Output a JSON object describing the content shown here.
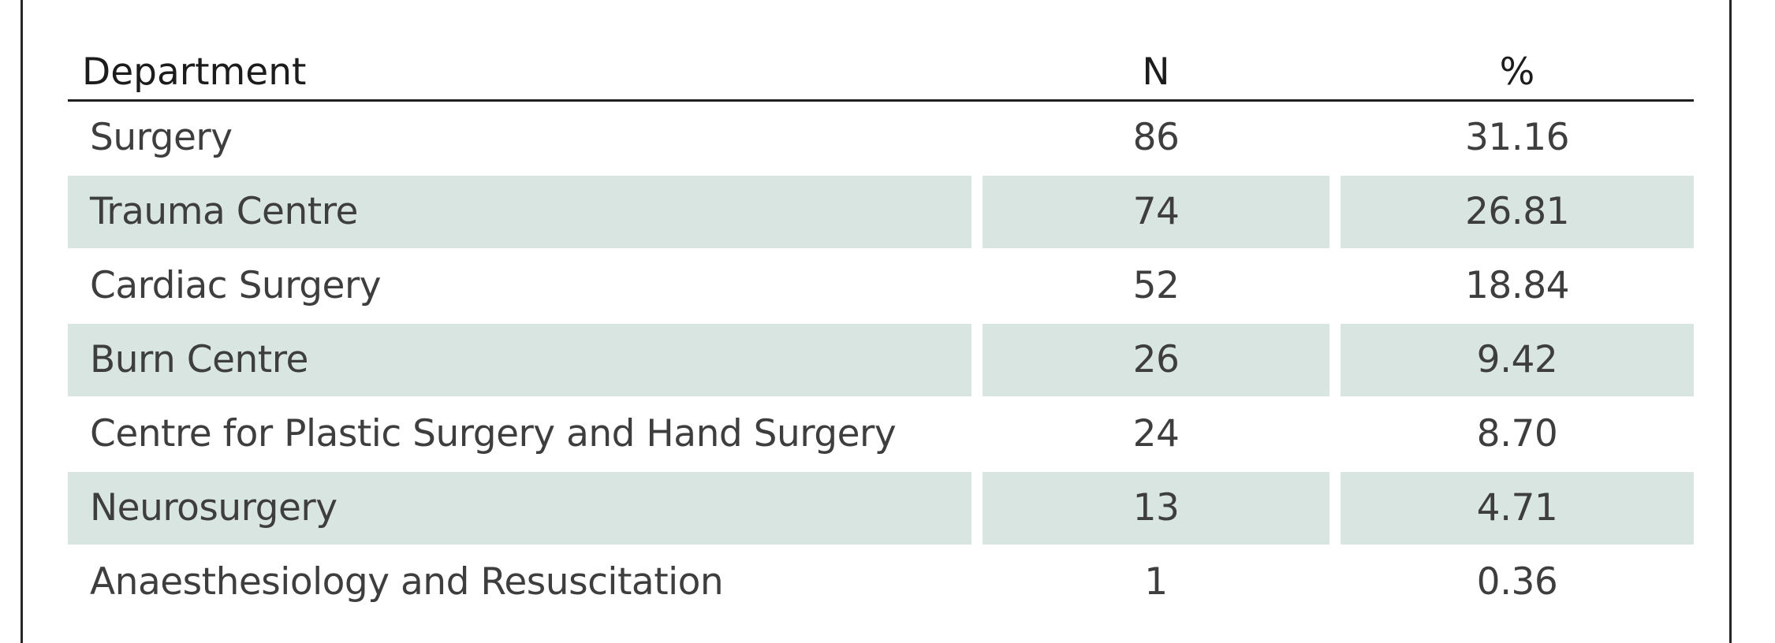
{
  "table": {
    "headers": {
      "department": "Department",
      "n": "N",
      "percent": "%"
    },
    "rows": [
      {
        "department": "Surgery",
        "n": "86",
        "percent": "31.16"
      },
      {
        "department": "Trauma Centre",
        "n": "74",
        "percent": "26.81"
      },
      {
        "department": "Cardiac Surgery",
        "n": "52",
        "percent": "18.84"
      },
      {
        "department": "Burn Centre",
        "n": "26",
        "percent": "9.42"
      },
      {
        "department": "Centre for Plastic Surgery and Hand Surgery",
        "n": "24",
        "percent": "8.70"
      },
      {
        "department": "Neurosurgery",
        "n": "13",
        "percent": "4.71"
      },
      {
        "department": "Anaesthesiology and Resuscitation",
        "n": "1",
        "percent": "0.36"
      }
    ],
    "colors": {
      "shaded_row": "#d9e5e0",
      "rule": "#1f1f1f"
    }
  }
}
